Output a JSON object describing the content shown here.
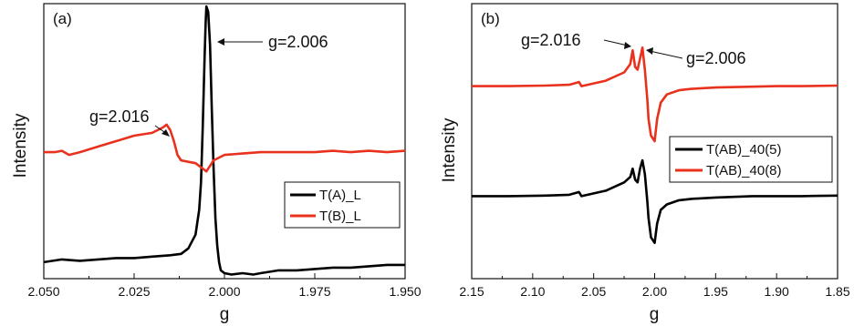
{
  "chart_data": [
    {
      "type": "line",
      "panel_label": "(a)",
      "xlabel": "g",
      "ylabel": "Intensity",
      "xlim": [
        2.05,
        1.95
      ],
      "x_reversed": true,
      "x_ticks": [
        "2.050",
        "2.025",
        "2.000",
        "1.975",
        "1.950"
      ],
      "y_ticks_shown": false,
      "legend_position": "lower-right",
      "colors": {
        "T(A)_L": "#000000",
        "T(B)_L": "#e8321e"
      },
      "series": [
        {
          "name": "T(A)_L",
          "color": "#000000",
          "points": [
            [
              2.05,
              0.06
            ],
            [
              2.045,
              0.07
            ],
            [
              2.04,
              0.065
            ],
            [
              2.035,
              0.07
            ],
            [
              2.03,
              0.075
            ],
            [
              2.025,
              0.075
            ],
            [
              2.02,
              0.08
            ],
            [
              2.015,
              0.085
            ],
            [
              2.012,
              0.09
            ],
            [
              2.01,
              0.11
            ],
            [
              2.008,
              0.16
            ],
            [
              2.007,
              0.25
            ],
            [
              2.0065,
              0.35
            ],
            [
              2.006,
              0.55
            ],
            [
              2.0055,
              0.8
            ],
            [
              2.0052,
              0.93
            ],
            [
              2.005,
              0.99
            ],
            [
              2.0045,
              0.97
            ],
            [
              2.004,
              0.85
            ],
            [
              2.0035,
              0.62
            ],
            [
              2.003,
              0.4
            ],
            [
              2.0025,
              0.22
            ],
            [
              2.002,
              0.12
            ],
            [
              2.0015,
              0.06
            ],
            [
              2.001,
              0.03
            ],
            [
              2.0,
              0.02
            ],
            [
              1.998,
              0.015
            ],
            [
              1.995,
              0.02
            ],
            [
              1.992,
              0.015
            ],
            [
              1.99,
              0.02
            ],
            [
              1.985,
              0.03
            ],
            [
              1.98,
              0.03
            ],
            [
              1.975,
              0.035
            ],
            [
              1.97,
              0.04
            ],
            [
              1.965,
              0.04
            ],
            [
              1.96,
              0.045
            ],
            [
              1.955,
              0.05
            ],
            [
              1.95,
              0.05
            ]
          ]
        },
        {
          "name": "T(B)_L",
          "color": "#e8321e",
          "points": [
            [
              2.05,
              0.46
            ],
            [
              2.047,
              0.46
            ],
            [
              2.045,
              0.465
            ],
            [
              2.043,
              0.45
            ],
            [
              2.04,
              0.46
            ],
            [
              2.035,
              0.48
            ],
            [
              2.03,
              0.5
            ],
            [
              2.025,
              0.52
            ],
            [
              2.02,
              0.53
            ],
            [
              2.017,
              0.55
            ],
            [
              2.016,
              0.56
            ],
            [
              2.015,
              0.54
            ],
            [
              2.014,
              0.5
            ],
            [
              2.013,
              0.45
            ],
            [
              2.012,
              0.43
            ],
            [
              2.01,
              0.425
            ],
            [
              2.008,
              0.42
            ],
            [
              2.006,
              0.4
            ],
            [
              2.005,
              0.39
            ],
            [
              2.004,
              0.41
            ],
            [
              2.003,
              0.43
            ],
            [
              2.0,
              0.45
            ],
            [
              1.995,
              0.455
            ],
            [
              1.99,
              0.46
            ],
            [
              1.985,
              0.46
            ],
            [
              1.98,
              0.46
            ],
            [
              1.975,
              0.46
            ],
            [
              1.97,
              0.465
            ],
            [
              1.965,
              0.46
            ],
            [
              1.96,
              0.465
            ],
            [
              1.955,
              0.46
            ],
            [
              1.95,
              0.465
            ]
          ]
        }
      ],
      "annotations": [
        {
          "text": "g=2.006"
        },
        {
          "text": "g=2.016"
        }
      ]
    },
    {
      "type": "line",
      "panel_label": "(b)",
      "xlabel": "g",
      "ylabel": "Intensity",
      "xlim": [
        2.15,
        1.85
      ],
      "x_reversed": true,
      "x_ticks": [
        "2.15",
        "2.10",
        "2.05",
        "2.00",
        "1.95",
        "1.90",
        "1.85"
      ],
      "y_ticks_shown": false,
      "legend_position": "center-right",
      "colors": {
        "T(AB)_40(5)": "#000000",
        "T(AB)_40(8)": "#e8321e"
      },
      "series": [
        {
          "name": "T(AB)_40(5)",
          "color": "#000000",
          "points": [
            [
              2.15,
              0.3
            ],
            [
              2.12,
              0.3
            ],
            [
              2.09,
              0.302
            ],
            [
              2.07,
              0.305
            ],
            [
              2.062,
              0.315
            ],
            [
              2.06,
              0.3
            ],
            [
              2.05,
              0.31
            ],
            [
              2.04,
              0.32
            ],
            [
              2.03,
              0.34
            ],
            [
              2.025,
              0.35
            ],
            [
              2.02,
              0.37
            ],
            [
              2.018,
              0.4
            ],
            [
              2.016,
              0.36
            ],
            [
              2.014,
              0.35
            ],
            [
              2.012,
              0.4
            ],
            [
              2.01,
              0.43
            ],
            [
              2.008,
              0.38
            ],
            [
              2.006,
              0.28
            ],
            [
              2.005,
              0.22
            ],
            [
              2.003,
              0.15
            ],
            [
              2.0,
              0.13
            ],
            [
              1.998,
              0.2
            ],
            [
              1.995,
              0.25
            ],
            [
              1.99,
              0.27
            ],
            [
              1.98,
              0.285
            ],
            [
              1.97,
              0.29
            ],
            [
              1.95,
              0.295
            ],
            [
              1.92,
              0.3
            ],
            [
              1.9,
              0.3
            ],
            [
              1.88,
              0.3
            ],
            [
              1.85,
              0.302
            ]
          ]
        },
        {
          "name": "T(AB)_40(8)",
          "color": "#e8321e",
          "points": [
            [
              2.15,
              0.7
            ],
            [
              2.12,
              0.7
            ],
            [
              2.09,
              0.702
            ],
            [
              2.07,
              0.705
            ],
            [
              2.062,
              0.715
            ],
            [
              2.06,
              0.7
            ],
            [
              2.05,
              0.71
            ],
            [
              2.04,
              0.72
            ],
            [
              2.03,
              0.74
            ],
            [
              2.025,
              0.75
            ],
            [
              2.02,
              0.78
            ],
            [
              2.018,
              0.83
            ],
            [
              2.016,
              0.77
            ],
            [
              2.014,
              0.76
            ],
            [
              2.012,
              0.8
            ],
            [
              2.01,
              0.84
            ],
            [
              2.008,
              0.76
            ],
            [
              2.006,
              0.65
            ],
            [
              2.005,
              0.58
            ],
            [
              2.003,
              0.52
            ],
            [
              2.0,
              0.5
            ],
            [
              1.998,
              0.58
            ],
            [
              1.995,
              0.64
            ],
            [
              1.99,
              0.67
            ],
            [
              1.98,
              0.685
            ],
            [
              1.97,
              0.69
            ],
            [
              1.95,
              0.695
            ],
            [
              1.92,
              0.698
            ],
            [
              1.9,
              0.7
            ],
            [
              1.88,
              0.7
            ],
            [
              1.85,
              0.702
            ]
          ]
        }
      ],
      "annotations": [
        {
          "text": "g=2.016"
        },
        {
          "text": "g=2.006"
        }
      ]
    }
  ]
}
